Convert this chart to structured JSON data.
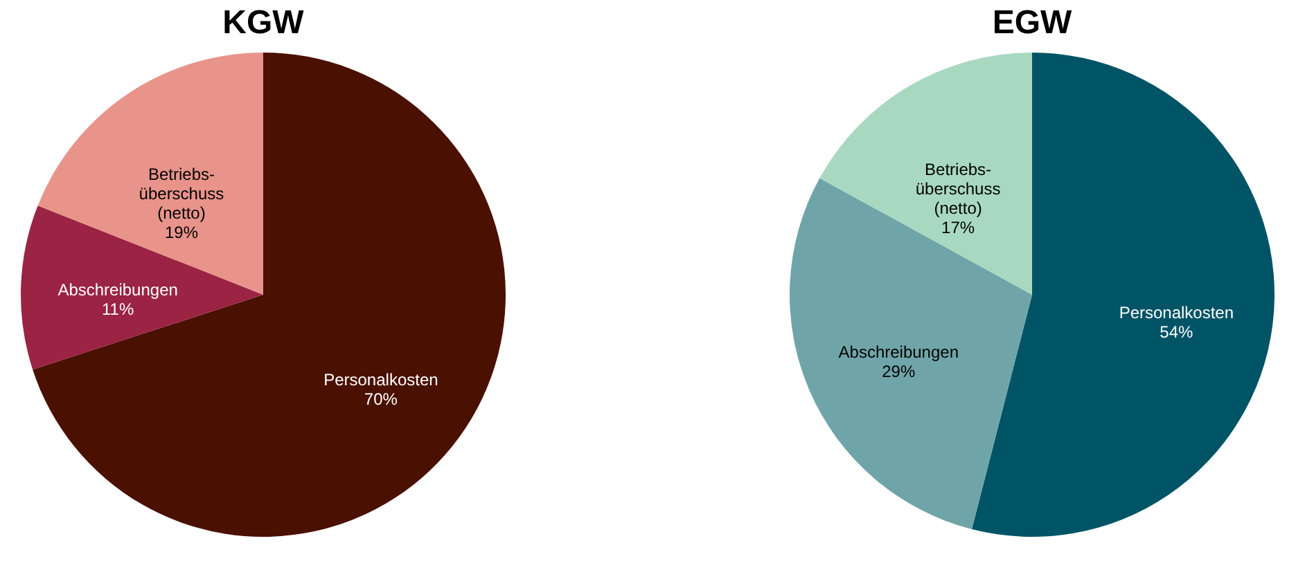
{
  "chart_data": [
    {
      "type": "pie",
      "title": "KGW",
      "categories": [
        "Personalkosten",
        "Abschreibungen",
        "Betriebs-\nüberschuss\n(netto)"
      ],
      "values": [
        70,
        11,
        19
      ],
      "colors": [
        "#4a1000",
        "#9b2343",
        "#e8948a"
      ],
      "value_labels": [
        "70%",
        "11%",
        "19%"
      ]
    },
    {
      "type": "pie",
      "title": "EGW",
      "categories": [
        "Personalkosten",
        "Abschreibungen",
        "Betriebs-\nüberschuss\n(netto)"
      ],
      "values": [
        54,
        29,
        17
      ],
      "colors": [
        "#005466",
        "#6fa5a8",
        "#a8d9c0"
      ],
      "value_labels": [
        "54%",
        "29%",
        "17%"
      ]
    }
  ]
}
